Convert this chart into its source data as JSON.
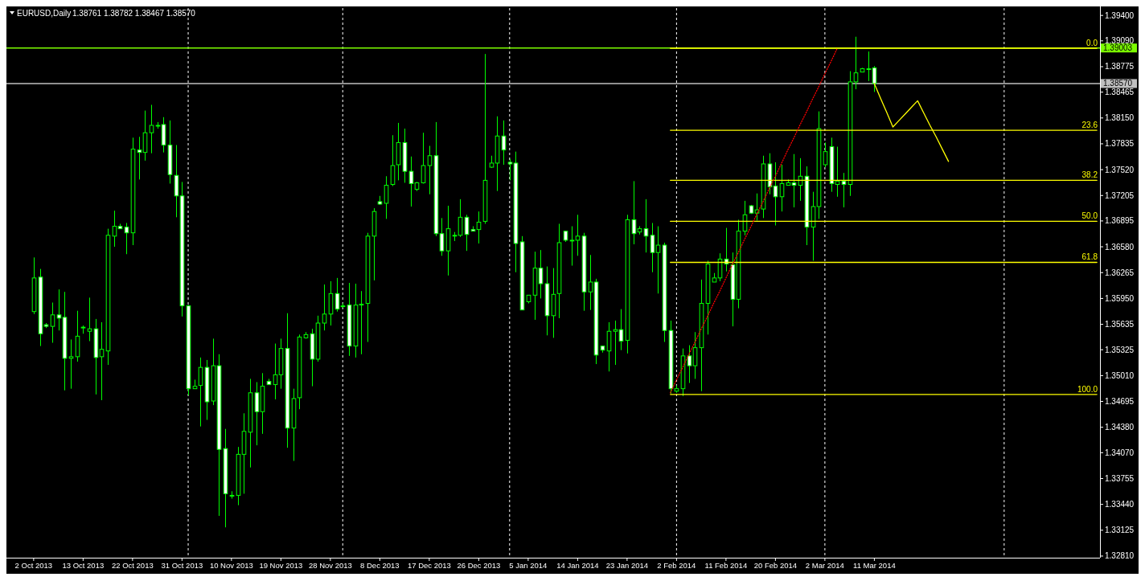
{
  "chart_data": {
    "type": "candlestick",
    "title": "EURUSD,Daily",
    "subtitle": "1.38761 1.38782 1.38467 1.38570",
    "color": "#00ff00",
    "categories": [
      "2 Oct 2013",
      null,
      null,
      null,
      null,
      null,
      null,
      null,
      "13 Oct 2013",
      null,
      null,
      null,
      null,
      null,
      null,
      null,
      "22 Oct 2013",
      null,
      null,
      null,
      null,
      null,
      null,
      null,
      "31 Oct 2013",
      null,
      null,
      null,
      null,
      null,
      null,
      null,
      "10 Nov 2013",
      null,
      null,
      null,
      null,
      null,
      null,
      null,
      "19 Nov 2013",
      null,
      null,
      null,
      null,
      null,
      null,
      null,
      "28 Nov 2013",
      null,
      null,
      null,
      null,
      null,
      null,
      null,
      "8 Dec 2013",
      null,
      null,
      null,
      null,
      null,
      null,
      null,
      "17 Dec 2013",
      null,
      null,
      null,
      null,
      null,
      null,
      null,
      "26 Dec 2013",
      null,
      null,
      null,
      null,
      null,
      null,
      null,
      "5 Jan 2014",
      null,
      null,
      null,
      null,
      null,
      null,
      null,
      "14 Jan 2014",
      null,
      null,
      null,
      null,
      null,
      null,
      null,
      "23 Jan 2014",
      null,
      null,
      null,
      null,
      null,
      null,
      null,
      "2 Feb 2014",
      null,
      null,
      null,
      null,
      null,
      null,
      null,
      "11 Feb 2014",
      null,
      null,
      null,
      null,
      null,
      null,
      null,
      "20 Feb 2014",
      null,
      null,
      null,
      null,
      null,
      null,
      null,
      "2 Mar 2014",
      null,
      null,
      null,
      null,
      null,
      null,
      null,
      "11 Mar 2014",
      null,
      null,
      null,
      null,
      null,
      null,
      null,
      null,
      null,
      null,
      null,
      null,
      null,
      null,
      null,
      null,
      null,
      null,
      null,
      null,
      null,
      null,
      null,
      null,
      null,
      null,
      null,
      null,
      null,
      null,
      null,
      null,
      null,
      null,
      null,
      null
    ],
    "ohlc": [
      [
        1.3579,
        1.3645,
        1.3576,
        1.362
      ],
      [
        1.3621,
        1.3631,
        1.3537,
        1.3552
      ],
      [
        1.3563,
        1.3565,
        1.3559,
        1.3561
      ],
      [
        1.3561,
        1.359,
        1.3541,
        1.3575
      ],
      [
        1.3575,
        1.3606,
        1.3556,
        1.3571
      ],
      [
        1.3572,
        1.3603,
        1.3483,
        1.3522
      ],
      [
        1.3522,
        1.3545,
        1.3485,
        1.3524
      ],
      [
        1.3524,
        1.358,
        1.3518,
        1.3549
      ],
      [
        1.356,
        1.3562,
        1.3552,
        1.356
      ],
      [
        1.3555,
        1.3596,
        1.3543,
        1.3558
      ],
      [
        1.3558,
        1.357,
        1.3478,
        1.3523
      ],
      [
        1.3524,
        1.3566,
        1.3471,
        1.3533
      ],
      [
        1.3531,
        1.368,
        1.3514,
        1.3672
      ],
      [
        1.3671,
        1.3702,
        1.3658,
        1.3683
      ],
      [
        1.3683,
        1.3686,
        1.368,
        1.368
      ],
      [
        1.3682,
        1.3687,
        1.3649,
        1.3675
      ],
      [
        1.3675,
        1.3791,
        1.366,
        1.3777
      ],
      [
        1.3776,
        1.3792,
        1.374,
        1.3773
      ],
      [
        1.3773,
        1.3824,
        1.3763,
        1.3797
      ],
      [
        1.3797,
        1.3831,
        1.3772,
        1.3806
      ],
      [
        1.3806,
        1.381,
        1.3802,
        1.3806
      ],
      [
        1.3807,
        1.3816,
        1.3773,
        1.3782
      ],
      [
        1.3782,
        1.3812,
        1.3735,
        1.3746
      ],
      [
        1.3745,
        1.3782,
        1.3694,
        1.372
      ],
      [
        1.372,
        1.3737,
        1.3573,
        1.3586
      ],
      [
        1.3586,
        1.3587,
        1.3477,
        1.3485
      ],
      [
        1.3485,
        1.3496,
        1.3485,
        1.3488
      ],
      [
        1.3489,
        1.3523,
        1.3439,
        1.3511
      ],
      [
        1.3511,
        1.352,
        1.3447,
        1.3469
      ],
      [
        1.347,
        1.3546,
        1.3465,
        1.3513
      ],
      [
        1.3513,
        1.3527,
        1.333,
        1.3411
      ],
      [
        1.3412,
        1.3436,
        1.3316,
        1.3357
      ],
      [
        1.3355,
        1.336,
        1.3351,
        1.3355
      ],
      [
        1.3355,
        1.3414,
        1.3343,
        1.3405
      ],
      [
        1.3405,
        1.3455,
        1.3357,
        1.3433
      ],
      [
        1.3432,
        1.3497,
        1.3389,
        1.348
      ],
      [
        1.348,
        1.3493,
        1.3416,
        1.3457
      ],
      [
        1.3457,
        1.3504,
        1.343,
        1.3488
      ],
      [
        1.3494,
        1.3497,
        1.349,
        1.349
      ],
      [
        1.349,
        1.354,
        1.3472,
        1.3502
      ],
      [
        1.3502,
        1.3546,
        1.3485,
        1.3534
      ],
      [
        1.3534,
        1.3577,
        1.3413,
        1.3437
      ],
      [
        1.3437,
        1.3485,
        1.3397,
        1.3473
      ],
      [
        1.3474,
        1.3551,
        1.346,
        1.3548
      ],
      [
        1.3547,
        1.3554,
        1.3546,
        1.3551
      ],
      [
        1.3552,
        1.3558,
        1.3488,
        1.3521
      ],
      [
        1.3521,
        1.3574,
        1.3518,
        1.3565
      ],
      [
        1.3565,
        1.3612,
        1.3556,
        1.3576
      ],
      [
        1.3576,
        1.3616,
        1.3562,
        1.3601
      ],
      [
        1.3601,
        1.362,
        1.3579,
        1.3582
      ],
      [
        1.3586,
        1.3589,
        1.3584,
        1.3586
      ],
      [
        1.3587,
        1.3614,
        1.3525,
        1.3537
      ],
      [
        1.3537,
        1.3613,
        1.3523,
        1.3587
      ],
      [
        1.3588,
        1.3604,
        1.3527,
        1.3588
      ],
      [
        1.3589,
        1.3675,
        1.3542,
        1.3671
      ],
      [
        1.3671,
        1.3705,
        1.3617,
        1.3701
      ],
      [
        1.3713,
        1.372,
        1.3709,
        1.371
      ],
      [
        1.3711,
        1.3744,
        1.3692,
        1.3733
      ],
      [
        1.3734,
        1.3794,
        1.3732,
        1.3757
      ],
      [
        1.3758,
        1.3809,
        1.3739,
        1.3785
      ],
      [
        1.3785,
        1.3802,
        1.3736,
        1.375
      ],
      [
        1.375,
        1.3768,
        1.3707,
        1.3735
      ],
      [
        1.3728,
        1.3737,
        1.3726,
        1.3736
      ],
      [
        1.3736,
        1.3797,
        1.3735,
        1.3757
      ],
      [
        1.3757,
        1.3781,
        1.3722,
        1.3769
      ],
      [
        1.3769,
        1.381,
        1.3671,
        1.3674
      ],
      [
        1.3674,
        1.3693,
        1.3647,
        1.3653
      ],
      [
        1.3653,
        1.3708,
        1.3623,
        1.368
      ],
      [
        1.3672,
        1.3676,
        1.3665,
        1.3672
      ],
      [
        1.3672,
        1.3716,
        1.367,
        1.3694
      ],
      [
        1.3694,
        1.3697,
        1.3653,
        1.3673
      ],
      [
        1.3679,
        1.3683,
        1.3677,
        1.3677
      ],
      [
        1.3679,
        1.3701,
        1.3662,
        1.3688
      ],
      [
        1.3689,
        1.3893,
        1.3686,
        1.3739
      ],
      [
        1.3755,
        1.3769,
        1.3754,
        1.376
      ],
      [
        1.376,
        1.3817,
        1.3726,
        1.3793
      ],
      [
        1.3793,
        1.3812,
        1.3758,
        1.3776
      ],
      [
        1.3761,
        1.3765,
        1.3739,
        1.3759
      ],
      [
        1.376,
        1.3774,
        1.3627,
        1.3662
      ],
      [
        1.3664,
        1.3671,
        1.3581,
        1.3581
      ],
      [
        1.3591,
        1.3599,
        1.3589,
        1.3599
      ],
      [
        1.3599,
        1.3652,
        1.3569,
        1.3632
      ],
      [
        1.3632,
        1.3654,
        1.3595,
        1.3613
      ],
      [
        1.3613,
        1.3634,
        1.355,
        1.3574
      ],
      [
        1.3574,
        1.3632,
        1.3547,
        1.36
      ],
      [
        1.3601,
        1.3686,
        1.3571,
        1.3663
      ],
      [
        1.3677,
        1.3677,
        1.3664,
        1.3666
      ],
      [
        1.3666,
        1.3683,
        1.3635,
        1.3666
      ],
      [
        1.3666,
        1.3697,
        1.3647,
        1.3671
      ],
      [
        1.3671,
        1.3675,
        1.358,
        1.3603
      ],
      [
        1.3603,
        1.3648,
        1.3581,
        1.3615
      ],
      [
        1.3615,
        1.3619,
        1.3515,
        1.3526
      ],
      [
        1.3537,
        1.3537,
        1.3529,
        1.3532
      ],
      [
        1.3531,
        1.3566,
        1.3506,
        1.3555
      ],
      [
        1.3555,
        1.3568,
        1.3514,
        1.3557
      ],
      [
        1.3557,
        1.3582,
        1.3532,
        1.3543
      ],
      [
        1.3544,
        1.3697,
        1.3528,
        1.3691
      ],
      [
        1.3691,
        1.3738,
        1.3661,
        1.3674
      ],
      [
        1.3676,
        1.3683,
        1.3673,
        1.368
      ],
      [
        1.368,
        1.3716,
        1.3651,
        1.3671
      ],
      [
        1.3672,
        1.3687,
        1.3627,
        1.3651
      ],
      [
        1.3651,
        1.3683,
        1.3601,
        1.366
      ],
      [
        1.366,
        1.3663,
        1.3542,
        1.3556
      ],
      [
        1.3556,
        1.3568,
        1.3479,
        1.3485
      ],
      [
        1.3482,
        1.3489,
        1.348,
        1.3485
      ],
      [
        1.3485,
        1.3534,
        1.3476,
        1.3525
      ],
      [
        1.3525,
        1.3538,
        1.3492,
        1.3513
      ],
      [
        1.3513,
        1.3554,
        1.3497,
        1.3535
      ],
      [
        1.3535,
        1.3618,
        1.3482,
        1.3589
      ],
      [
        1.3589,
        1.3641,
        1.3551,
        1.3637
      ],
      [
        1.3615,
        1.3626,
        1.3615,
        1.362
      ],
      [
        1.362,
        1.365,
        1.3616,
        1.3643
      ],
      [
        1.3643,
        1.3681,
        1.3628,
        1.3637
      ],
      [
        1.3636,
        1.3651,
        1.3561,
        1.3594
      ],
      [
        1.3594,
        1.3691,
        1.3583,
        1.3677
      ],
      [
        1.3677,
        1.3714,
        1.3672,
        1.3697
      ],
      [
        1.3708,
        1.3709,
        1.3698,
        1.3699
      ],
      [
        1.3699,
        1.3723,
        1.369,
        1.3703
      ],
      [
        1.3704,
        1.3769,
        1.3693,
        1.3759
      ],
      [
        1.3759,
        1.3772,
        1.3722,
        1.3731
      ],
      [
        1.3732,
        1.3761,
        1.3684,
        1.3719
      ],
      [
        1.3719,
        1.3758,
        1.3701,
        1.3735
      ],
      [
        1.3733,
        1.374,
        1.3733,
        1.3736
      ],
      [
        1.3736,
        1.3771,
        1.3706,
        1.3733
      ],
      [
        1.3733,
        1.3766,
        1.3714,
        1.3744
      ],
      [
        1.3744,
        1.3756,
        1.366,
        1.3682
      ],
      [
        1.3682,
        1.3725,
        1.3641,
        1.3707
      ],
      [
        1.3707,
        1.3823,
        1.3692,
        1.3802
      ],
      [
        1.3758,
        1.3785,
        1.3755,
        1.3774
      ],
      [
        1.378,
        1.3791,
        1.3725,
        1.3735
      ],
      [
        1.3734,
        1.378,
        1.3719,
        1.3738
      ],
      [
        1.3738,
        1.3748,
        1.3706,
        1.3734
      ],
      [
        1.3734,
        1.3872,
        1.372,
        1.3859
      ],
      [
        1.3859,
        1.3914,
        1.385,
        1.387
      ],
      [
        1.3871,
        1.3876,
        1.3871,
        1.3875
      ],
      [
        1.3875,
        1.3896,
        1.386,
        1.3875
      ],
      [
        1.38761,
        1.38782,
        1.38467,
        1.3857
      ],
      null,
      null,
      null,
      null,
      null,
      null,
      null,
      null,
      null,
      null,
      null,
      null,
      null,
      null,
      null,
      null,
      null,
      null,
      null,
      null,
      null,
      null,
      null,
      null,
      null,
      null,
      null,
      null,
      null,
      null,
      null,
      null,
      null,
      null,
      null,
      null
    ],
    "series": [
      {
        "type": "line",
        "color": "#ffff00",
        "values": [
          null,
          null,
          null,
          null,
          null,
          null,
          null,
          null,
          null,
          null,
          null,
          null,
          null,
          null,
          null,
          null,
          null,
          null,
          null,
          null,
          null,
          null,
          null,
          null,
          null,
          null,
          null,
          null,
          null,
          null,
          null,
          null,
          null,
          null,
          null,
          null,
          null,
          null,
          null,
          null,
          null,
          null,
          null,
          null,
          null,
          null,
          null,
          null,
          null,
          null,
          null,
          null,
          null,
          null,
          null,
          null,
          null,
          null,
          null,
          null,
          null,
          null,
          null,
          null,
          null,
          null,
          null,
          null,
          null,
          null,
          null,
          null,
          null,
          null,
          null,
          null,
          null,
          null,
          null,
          null,
          null,
          null,
          null,
          null,
          null,
          null,
          null,
          null,
          null,
          null,
          null,
          null,
          null,
          null,
          null,
          null,
          null,
          null,
          null,
          null,
          null,
          null,
          null,
          1.39,
          1.39,
          1.39,
          1.39,
          1.39,
          1.39,
          1.39,
          1.39,
          1.39,
          1.39,
          1.39,
          1.39,
          1.39,
          1.39,
          1.39,
          1.39,
          1.39,
          1.39,
          1.39,
          1.39,
          1.39,
          1.39,
          1.39,
          1.39,
          1.39,
          1.39,
          1.39,
          1.39,
          1.39,
          1.39,
          1.39,
          1.39,
          1.39,
          1.39,
          1.39,
          1.39,
          1.39,
          1.39,
          1.39,
          1.39,
          1.39,
          1.39,
          1.39,
          1.39,
          1.39,
          1.39,
          1.39,
          1.39,
          1.39,
          1.39,
          1.39,
          1.39,
          1.39,
          1.39,
          1.39,
          1.39,
          1.39,
          1.39,
          1.39,
          1.39,
          1.39,
          1.39,
          1.39,
          1.39,
          1.39,
          1.39,
          1.39,
          1.39,
          1.39,
          1.39
        ]
      },
      {
        "type": "line",
        "color": "#ffff00",
        "values": [
          null,
          null,
          null,
          null,
          null,
          null,
          null,
          null,
          null,
          null,
          null,
          null,
          null,
          null,
          null,
          null,
          null,
          null,
          null,
          null,
          null,
          null,
          null,
          null,
          null,
          null,
          null,
          null,
          null,
          null,
          null,
          null,
          null,
          null,
          null,
          null,
          null,
          null,
          null,
          null,
          null,
          null,
          null,
          null,
          null,
          null,
          null,
          null,
          null,
          null,
          null,
          null,
          null,
          null,
          null,
          null,
          null,
          null,
          null,
          null,
          null,
          null,
          null,
          null,
          null,
          null,
          null,
          null,
          null,
          null,
          null,
          null,
          null,
          null,
          null,
          null,
          null,
          null,
          null,
          null,
          null,
          null,
          null,
          null,
          null,
          null,
          null,
          null,
          null,
          null,
          null,
          null,
          null,
          null,
          null,
          null,
          null,
          null,
          null,
          null,
          null,
          null,
          null,
          1.38,
          1.38,
          1.38,
          1.38,
          1.38,
          1.38,
          1.38,
          1.38,
          1.38,
          1.38,
          1.38,
          1.38,
          1.38,
          1.38,
          1.38,
          1.38,
          1.38,
          1.38,
          1.38,
          1.38,
          1.38,
          1.38,
          1.38,
          1.38,
          1.38,
          1.38,
          1.38,
          1.38,
          1.38,
          1.38,
          1.38,
          1.38,
          1.38,
          1.38,
          1.38,
          1.38,
          1.38,
          1.38,
          1.38,
          1.38,
          1.38,
          1.38,
          1.38,
          1.38,
          1.38,
          1.38,
          1.38,
          1.38,
          1.38,
          1.38,
          1.38,
          1.38,
          1.38,
          1.38,
          1.38,
          1.38,
          1.38,
          1.38,
          1.38,
          1.38,
          1.38,
          1.38,
          1.38,
          1.38,
          1.38,
          1.38,
          1.38,
          1.38,
          1.38,
          1.38
        ]
      },
      {
        "type": "line",
        "color": "#ffff00",
        "values": [
          null,
          null,
          null,
          null,
          null,
          null,
          null,
          null,
          null,
          null,
          null,
          null,
          null,
          null,
          null,
          null,
          null,
          null,
          null,
          null,
          null,
          null,
          null,
          null,
          null,
          null,
          null,
          null,
          null,
          null,
          null,
          null,
          null,
          null,
          null,
          null,
          null,
          null,
          null,
          null,
          null,
          null,
          null,
          null,
          null,
          null,
          null,
          null,
          null,
          null,
          null,
          null,
          null,
          null,
          null,
          null,
          null,
          null,
          null,
          null,
          null,
          null,
          null,
          null,
          null,
          null,
          null,
          null,
          null,
          null,
          null,
          null,
          null,
          null,
          null,
          null,
          null,
          null,
          null,
          null,
          null,
          null,
          null,
          null,
          null,
          null,
          null,
          null,
          null,
          null,
          null,
          null,
          null,
          null,
          null,
          null,
          null,
          null,
          null,
          null,
          null,
          null,
          null,
          1.3739,
          1.3739,
          1.3739,
          1.3739,
          1.3739,
          1.3739,
          1.3739,
          1.3739,
          1.3739,
          1.3739,
          1.3739,
          1.3739,
          1.3739,
          1.3739,
          1.3739,
          1.3739,
          1.3739,
          1.3739,
          1.3739,
          1.3739,
          1.3739,
          1.3739,
          1.3739,
          1.3739,
          1.3739,
          1.3739,
          1.3739,
          1.3739,
          1.3739,
          1.3739,
          1.3739,
          1.3739,
          1.3739,
          1.3739,
          1.3739,
          1.3739,
          1.3739,
          1.3739,
          1.3739,
          1.3739,
          1.3739,
          1.3739,
          1.3739,
          1.3739,
          1.3739,
          1.3739,
          1.3739,
          1.3739,
          1.3739,
          1.3739,
          1.3739,
          1.3739,
          1.3739,
          1.3739,
          1.3739,
          1.3739,
          1.3739,
          1.3739,
          1.3739,
          1.3739,
          1.3739,
          1.3739,
          1.3739,
          1.3739,
          1.3739,
          1.3739,
          1.3739,
          1.3739,
          1.3739,
          1.3739
        ]
      },
      {
        "type": "line",
        "color": "#ffff00",
        "values": [
          null,
          null,
          null,
          null,
          null,
          null,
          null,
          null,
          null,
          null,
          null,
          null,
          null,
          null,
          null,
          null,
          null,
          null,
          null,
          null,
          null,
          null,
          null,
          null,
          null,
          null,
          null,
          null,
          null,
          null,
          null,
          null,
          null,
          null,
          null,
          null,
          null,
          null,
          null,
          null,
          null,
          null,
          null,
          null,
          null,
          null,
          null,
          null,
          null,
          null,
          null,
          null,
          null,
          null,
          null,
          null,
          null,
          null,
          null,
          null,
          null,
          null,
          null,
          null,
          null,
          null,
          null,
          null,
          null,
          null,
          null,
          null,
          null,
          null,
          null,
          null,
          null,
          null,
          null,
          null,
          null,
          null,
          null,
          null,
          null,
          null,
          null,
          null,
          null,
          null,
          null,
          null,
          null,
          null,
          null,
          null,
          null,
          null,
          null,
          null,
          null,
          null,
          null,
          1.3689,
          1.3689,
          1.3689,
          1.3689,
          1.3689,
          1.3689,
          1.3689,
          1.3689,
          1.3689,
          1.3689,
          1.3689,
          1.3689,
          1.3689,
          1.3689,
          1.3689,
          1.3689,
          1.3689,
          1.3689,
          1.3689,
          1.3689,
          1.3689,
          1.3689,
          1.3689,
          1.3689,
          1.3689,
          1.3689,
          1.3689,
          1.3689,
          1.3689,
          1.3689,
          1.3689,
          1.3689,
          1.3689,
          1.3689,
          1.3689,
          1.3689,
          1.3689,
          1.3689,
          1.3689,
          1.3689,
          1.3689,
          1.3689,
          1.3689,
          1.3689,
          1.3689,
          1.3689,
          1.3689,
          1.3689,
          1.3689,
          1.3689,
          1.3689,
          1.3689,
          1.3689,
          1.3689,
          1.3689,
          1.3689,
          1.3689,
          1.3689,
          1.3689,
          1.3689,
          1.3689,
          1.3689,
          1.3689,
          1.3689,
          1.3689,
          1.3689,
          1.3689,
          1.3689,
          1.3689,
          1.3689
        ]
      },
      {
        "type": "line",
        "color": "#ffff00",
        "values": [
          null,
          null,
          null,
          null,
          null,
          null,
          null,
          null,
          null,
          null,
          null,
          null,
          null,
          null,
          null,
          null,
          null,
          null,
          null,
          null,
          null,
          null,
          null,
          null,
          null,
          null,
          null,
          null,
          null,
          null,
          null,
          null,
          null,
          null,
          null,
          null,
          null,
          null,
          null,
          null,
          null,
          null,
          null,
          null,
          null,
          null,
          null,
          null,
          null,
          null,
          null,
          null,
          null,
          null,
          null,
          null,
          null,
          null,
          null,
          null,
          null,
          null,
          null,
          null,
          null,
          null,
          null,
          null,
          null,
          null,
          null,
          null,
          null,
          null,
          null,
          null,
          null,
          null,
          null,
          null,
          null,
          null,
          null,
          null,
          null,
          null,
          null,
          null,
          null,
          null,
          null,
          null,
          null,
          null,
          null,
          null,
          null,
          null,
          null,
          null,
          null,
          null,
          null,
          1.3639,
          1.3639,
          1.3639,
          1.3639,
          1.3639,
          1.3639,
          1.3639,
          1.3639,
          1.3639,
          1.3639,
          1.3639,
          1.3639,
          1.3639,
          1.3639,
          1.3639,
          1.3639,
          1.3639,
          1.3639,
          1.3639,
          1.3639,
          1.3639,
          1.3639,
          1.3639,
          1.3639,
          1.3639,
          1.3639,
          1.3639,
          1.3639,
          1.3639,
          1.3639,
          1.3639,
          1.3639,
          1.3639,
          1.3639,
          1.3639,
          1.3639,
          1.3639,
          1.3639,
          1.3639,
          1.3639,
          1.3639,
          1.3639,
          1.3639,
          1.3639,
          1.3639,
          1.3639,
          1.3639,
          1.3639,
          1.3639,
          1.3639,
          1.3639,
          1.3639,
          1.3639,
          1.3639,
          1.3639,
          1.3639,
          1.3639,
          1.3639,
          1.3639,
          1.3639,
          1.3639,
          1.3639,
          1.3639,
          1.3639,
          1.3639,
          1.3639,
          1.3639,
          1.3639,
          1.3639,
          1.3639
        ]
      },
      {
        "type": "line",
        "color": "#ffff00",
        "values": [
          null,
          null,
          null,
          null,
          null,
          null,
          null,
          null,
          null,
          null,
          null,
          null,
          null,
          null,
          null,
          null,
          null,
          null,
          null,
          null,
          null,
          null,
          null,
          null,
          null,
          null,
          null,
          null,
          null,
          null,
          null,
          null,
          null,
          null,
          null,
          null,
          null,
          null,
          null,
          null,
          null,
          null,
          null,
          null,
          null,
          null,
          null,
          null,
          null,
          null,
          null,
          null,
          null,
          null,
          null,
          null,
          null,
          null,
          null,
          null,
          null,
          null,
          null,
          null,
          null,
          null,
          null,
          null,
          null,
          null,
          null,
          null,
          null,
          null,
          null,
          null,
          null,
          null,
          null,
          null,
          null,
          null,
          null,
          null,
          null,
          null,
          null,
          null,
          null,
          null,
          null,
          null,
          null,
          null,
          null,
          null,
          null,
          null,
          null,
          null,
          null,
          null,
          null,
          1.3478,
          1.3478,
          1.3478,
          1.3478,
          1.3478,
          1.3478,
          1.3478,
          1.3478,
          1.3478,
          1.3478,
          1.3478,
          1.3478,
          1.3478,
          1.3478,
          1.3478,
          1.3478,
          1.3478,
          1.3478,
          1.3478,
          1.3478,
          1.3478,
          1.3478,
          1.3478,
          1.3478,
          1.3478,
          1.3478,
          1.3478,
          1.3478,
          1.3478,
          1.3478,
          1.3478,
          1.3478,
          1.3478,
          1.3478,
          1.3478,
          1.3478,
          1.3478,
          1.3478,
          1.3478,
          1.3478,
          1.3478,
          1.3478,
          1.3478,
          1.3478,
          1.3478,
          1.3478,
          1.3478,
          1.3478,
          1.3478,
          1.3478,
          1.3478,
          1.3478,
          1.3478,
          1.3478,
          1.3478,
          1.3478,
          1.3478,
          1.3478,
          1.3478,
          1.3478,
          1.3478,
          1.3478,
          1.3478,
          1.3478,
          1.3478,
          1.3478,
          1.3478,
          1.3478,
          1.3478,
          1.3478
        ]
      },
      {
        "type": "line",
        "color": "#ff0000",
        "line_style": "dotted",
        "values": [
          null,
          null,
          null,
          null,
          null,
          null,
          null,
          null,
          null,
          null,
          null,
          null,
          null,
          null,
          null,
          null,
          null,
          null,
          null,
          null,
          null,
          null,
          null,
          null,
          null,
          null,
          null,
          null,
          null,
          null,
          null,
          null,
          null,
          null,
          null,
          null,
          null,
          null,
          null,
          null,
          null,
          null,
          null,
          null,
          null,
          null,
          null,
          null,
          null,
          null,
          null,
          null,
          null,
          null,
          null,
          null,
          null,
          null,
          null,
          null,
          null,
          null,
          null,
          null,
          null,
          null,
          null,
          null,
          null,
          null,
          null,
          null,
          null,
          null,
          null,
          null,
          null,
          null,
          null,
          null,
          null,
          null,
          null,
          null,
          null,
          null,
          null,
          null,
          null,
          null,
          null,
          null,
          null,
          null,
          null,
          null,
          null,
          null,
          null,
          null,
          null,
          null,
          null,
          1.348,
          1.3496,
          1.3511,
          1.3527,
          1.3542,
          1.3558,
          1.3573,
          1.3589,
          1.3604,
          1.362,
          1.3636,
          1.3651,
          1.3667,
          1.3682,
          1.3698,
          1.3713,
          1.3729,
          1.3744,
          1.376,
          1.3776,
          1.3791,
          1.3807,
          1.3822,
          1.3838,
          1.3853,
          1.3869,
          1.3884,
          1.39,
          null,
          null,
          null,
          null,
          null,
          null,
          null,
          null,
          null,
          null,
          null,
          null,
          null,
          null,
          null,
          null,
          null,
          null,
          null,
          null,
          null,
          null,
          null,
          null,
          null,
          null,
          null,
          null,
          null,
          null,
          null,
          null,
          null,
          null,
          null,
          null,
          null,
          null,
          null,
          null,
          null,
          null
        ]
      },
      {
        "type": "line",
        "color": "#ffff00",
        "values": [
          null,
          null,
          null,
          null,
          null,
          null,
          null,
          null,
          null,
          null,
          null,
          null,
          null,
          null,
          null,
          null,
          null,
          null,
          null,
          null,
          null,
          null,
          null,
          null,
          null,
          null,
          null,
          null,
          null,
          null,
          null,
          null,
          null,
          null,
          null,
          null,
          null,
          null,
          null,
          null,
          null,
          null,
          null,
          null,
          null,
          null,
          null,
          null,
          null,
          null,
          null,
          null,
          null,
          null,
          null,
          null,
          null,
          null,
          null,
          null,
          null,
          null,
          null,
          null,
          null,
          null,
          null,
          null,
          null,
          null,
          null,
          null,
          null,
          null,
          null,
          null,
          null,
          null,
          null,
          null,
          null,
          null,
          null,
          null,
          null,
          null,
          null,
          null,
          null,
          null,
          null,
          null,
          null,
          null,
          null,
          null,
          null,
          null,
          null,
          null,
          null,
          null,
          null,
          null,
          null,
          null,
          null,
          null,
          null,
          null,
          null,
          null,
          null,
          null,
          null,
          null,
          null,
          null,
          null,
          null,
          null,
          null,
          null,
          null,
          null,
          null,
          null,
          null,
          null,
          null,
          null,
          null,
          null,
          null,
          null,
          null,
          1.3857,
          1.3839,
          1.3822,
          1.3804,
          1.3812,
          1.382,
          1.3828,
          1.3836,
          1.3821,
          1.3806,
          1.3792,
          1.3777,
          1.3762,
          null,
          null,
          null,
          null,
          null,
          null,
          null,
          null,
          null,
          null,
          null,
          null,
          null,
          null,
          null,
          null,
          null,
          null,
          null,
          null,
          null,
          null,
          null,
          null
        ]
      }
    ],
    "annotations": [
      {
        "text": "0.0",
        "y": 1.39
      },
      {
        "text": "23.6",
        "y": 1.38
      },
      {
        "text": "38.2",
        "y": 1.3739
      },
      {
        "text": "50.0",
        "y": 1.3689
      },
      {
        "text": "61.8",
        "y": 1.3639
      },
      {
        "text": "100.0",
        "y": 1.3478
      }
    ],
    "ref_lines": [
      {
        "axis": "y",
        "value": 1.39003,
        "label": "1.39003",
        "color": "#7cfc00"
      },
      {
        "axis": "y",
        "value": 1.3857,
        "label": "1.38570",
        "color": "#c0c0c0"
      }
    ],
    "ylim": [
      1.3279,
      1.3949
    ],
    "yticks": [
      {
        "value": 1.394,
        "label": "1.39400"
      },
      {
        "value": 1.3909,
        "label": "1.39090"
      },
      {
        "value": 1.38775,
        "label": "1.38775"
      },
      {
        "value": 1.38465,
        "label": "1.38465"
      },
      {
        "value": 1.3815,
        "label": "1.38150"
      },
      {
        "value": 1.37835,
        "label": "1.37835"
      },
      {
        "value": 1.3752,
        "label": "1.37520"
      },
      {
        "value": 1.37205,
        "label": "1.37205"
      },
      {
        "value": 1.36895,
        "label": "1.36895"
      },
      {
        "value": 1.3658,
        "label": "1.36580"
      },
      {
        "value": 1.36265,
        "label": "1.36265"
      },
      {
        "value": 1.3595,
        "label": "1.35950"
      },
      {
        "value": 1.35635,
        "label": "1.35635"
      },
      {
        "value": 1.35325,
        "label": "1.35325"
      },
      {
        "value": 1.3501,
        "label": "1.35010"
      },
      {
        "value": 1.34695,
        "label": "1.34695"
      },
      {
        "value": 1.3438,
        "label": "1.34380"
      },
      {
        "value": 1.3407,
        "label": "1.34070"
      },
      {
        "value": 1.33755,
        "label": "1.33755"
      },
      {
        "value": 1.3344,
        "label": "1.33440"
      },
      {
        "value": 1.33125,
        "label": "1.33125"
      },
      {
        "value": 1.3281,
        "label": "1.32810"
      }
    ]
  }
}
